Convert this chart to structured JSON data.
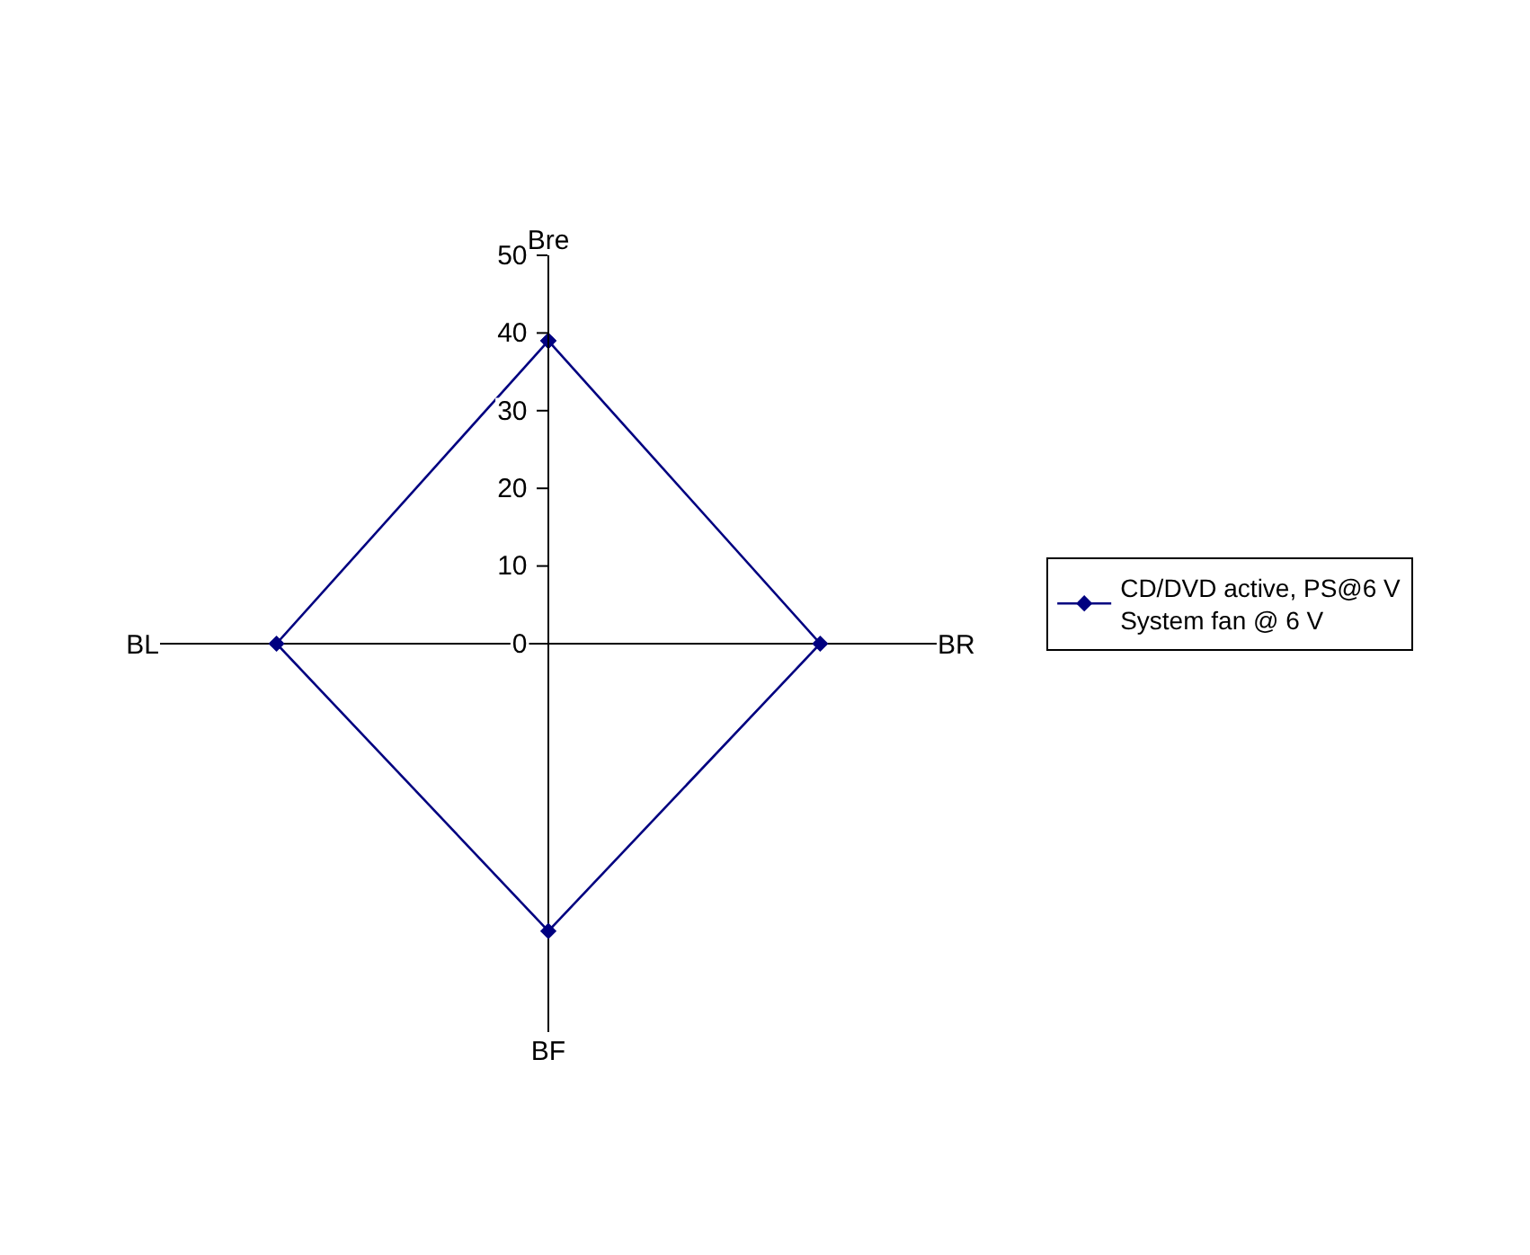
{
  "chart_data": {
    "type": "radar",
    "categories": [
      "Bre",
      "BR",
      "BF",
      "BL"
    ],
    "series": [
      {
        "name": "CD/DVD active, PS@6 V\nSystem fan @ 6 V",
        "color": "#000080",
        "values": [
          39,
          35,
          37,
          35
        ]
      }
    ],
    "ylim": [
      0,
      50
    ],
    "yticks": [
      0,
      10,
      20,
      30,
      40,
      50
    ],
    "grid": false,
    "legend": "right",
    "marker": "diamond",
    "line_style": "solid"
  }
}
